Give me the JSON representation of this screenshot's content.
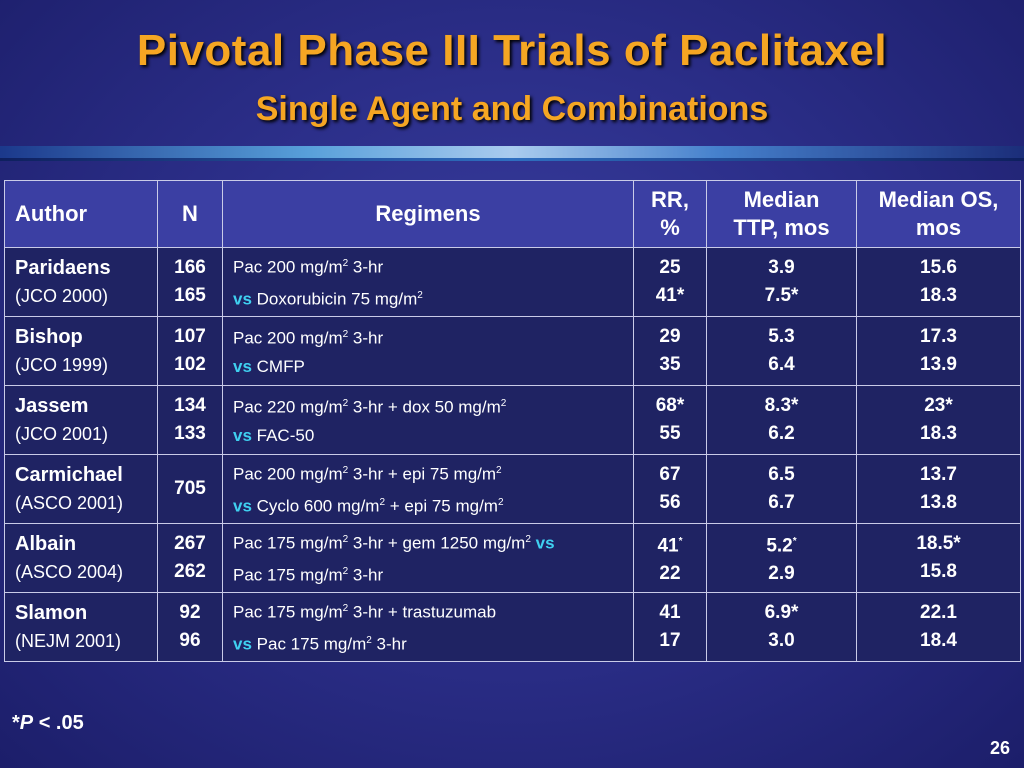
{
  "title": "Pivotal Phase III Trials of Paclitaxel",
  "subtitle": "Single Agent and Combinations",
  "table": {
    "headers": {
      "author": "Author",
      "n": "N",
      "regimens": "Regimens",
      "rr": [
        "RR,",
        "%"
      ],
      "ttp": [
        "Median",
        "TTP, mos"
      ],
      "os": [
        "Median OS,",
        "mos"
      ]
    },
    "rows": [
      {
        "author": "Paridaens",
        "ref": "(JCO 2000)",
        "n": [
          "166",
          "165"
        ],
        "reg1": {
          "pre": "Pac 200 mg/m",
          "sup": "2",
          "post": " 3-hr"
        },
        "reg2": {
          "vs": "vs",
          "text": " Doxorubicin 75 mg/m",
          "sup": "2",
          "post": ""
        },
        "rr": [
          "25",
          "41*"
        ],
        "ttp": [
          "3.9",
          "7.5*"
        ],
        "os": [
          "15.6",
          "18.3"
        ]
      },
      {
        "author": "Bishop",
        "ref": "(JCO 1999)",
        "n": [
          "107",
          "102"
        ],
        "reg1": {
          "pre": "Pac 200 mg/m",
          "sup": "2",
          "post": " 3-hr"
        },
        "reg2": {
          "vs": "vs",
          "text": " CMFP",
          "sup": "",
          "post": ""
        },
        "rr": [
          "29",
          "35"
        ],
        "ttp": [
          "5.3",
          "6.4"
        ],
        "os": [
          "17.3",
          "13.9"
        ]
      },
      {
        "author": "Jassem",
        "ref": "(JCO 2001)",
        "n": [
          "134",
          "133"
        ],
        "reg1": {
          "pre": "Pac 220 mg/m",
          "sup": "2",
          "post": " 3-hr + dox 50 mg/m",
          "sup2": "2"
        },
        "reg2": {
          "vs": "vs",
          "text": " FAC-50",
          "sup": "",
          "post": ""
        },
        "rr": [
          "68*",
          "55"
        ],
        "ttp": [
          "8.3*",
          "6.2"
        ],
        "os": [
          "23*",
          "18.3"
        ]
      },
      {
        "author": "Carmichael",
        "ref": "(ASCO 2001)",
        "n": [
          "705"
        ],
        "reg1": {
          "pre": "Pac 200 mg/m",
          "sup": "2",
          "post": " 3-hr + epi 75 mg/m",
          "sup2": "2"
        },
        "reg2": {
          "vs": "vs",
          "text": " Cyclo 600 mg/m",
          "sup": "2",
          "post": " + epi 75 mg/m",
          "sup2": "2"
        },
        "rr": [
          "67",
          "56"
        ],
        "ttp": [
          "6.5",
          "6.7"
        ],
        "os": [
          "13.7",
          "13.8"
        ]
      },
      {
        "author": "Albain",
        "ref": "(ASCO 2004)",
        "n": [
          "267",
          "262"
        ],
        "reg1": {
          "pre": "Pac 175 mg/m",
          "sup": "2",
          "post": " 3-hr + gem 1250 mg/m",
          "sup2": "2",
          "vs_end": " vs"
        },
        "reg2": {
          "vs": "",
          "text": "Pac 175 mg/m",
          "sup": "2",
          "post": " 3-hr"
        },
        "rr": [
          "41",
          "22"
        ],
        "rr_sup": "*",
        "ttp": [
          "5.2",
          "2.9"
        ],
        "ttp_sup": "*",
        "os": [
          "18.5*",
          "15.8"
        ]
      },
      {
        "author": "Slamon",
        "ref": "(NEJM 2001)",
        "n": [
          "92",
          "96"
        ],
        "reg1": {
          "pre": "Pac 175 mg/m",
          "sup": "2",
          "post": " 3-hr + trastuzumab"
        },
        "reg2": {
          "vs": "vs",
          "text": " Pac 175 mg/m",
          "sup": "2",
          "post": " 3-hr"
        },
        "rr": [
          "41",
          "17"
        ],
        "ttp": [
          "6.9*",
          "3.0"
        ],
        "os": [
          "22.1",
          "18.4"
        ]
      }
    ]
  },
  "footnote": {
    "star": "*",
    "p": "P",
    "rest": " < .05"
  },
  "page_number": "26",
  "colors": {
    "title": "#f5a623",
    "vs": "#3fd0f0",
    "background": "#2c2f8a"
  }
}
